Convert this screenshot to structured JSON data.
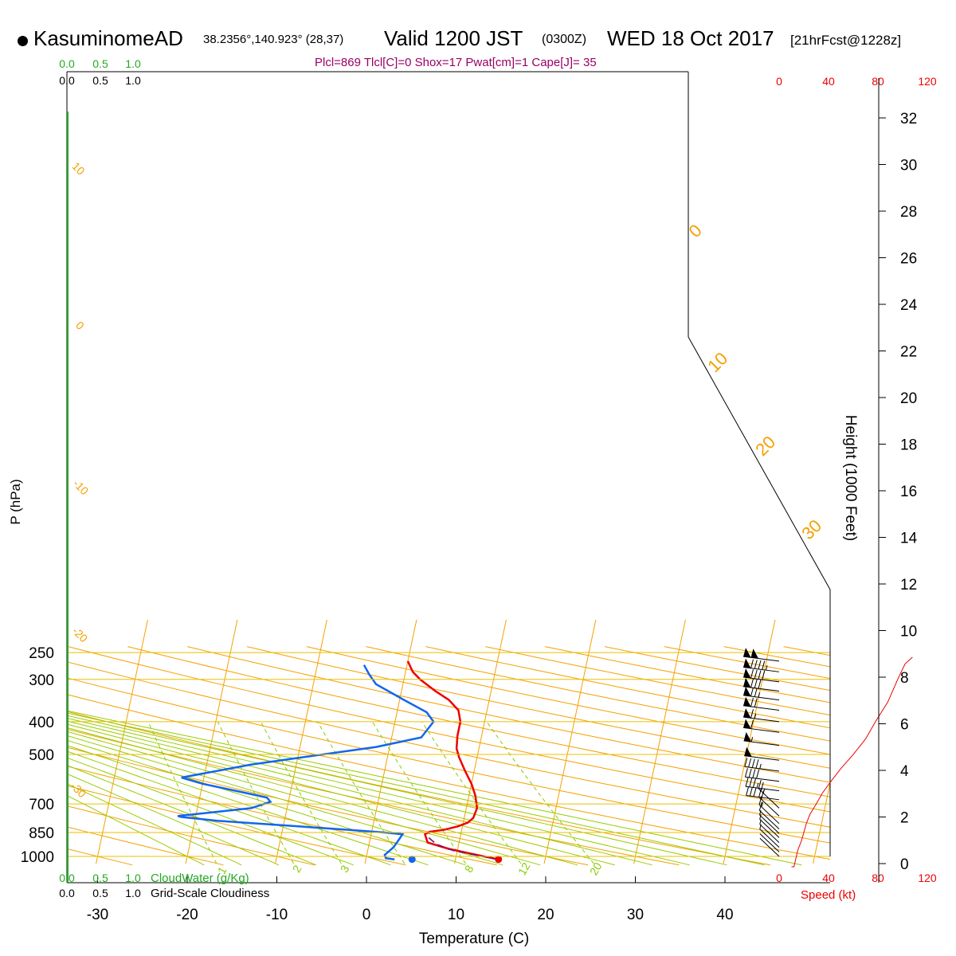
{
  "header": {
    "station": "KasuminomeAD",
    "coords": "38.2356°,140.923° (28,37)",
    "valid": "Valid 1200 JST",
    "zulu": "(0300Z)",
    "date": "WED 18 Oct 2017",
    "forecast": "[21hrFcst@1228z]"
  },
  "indices": "Plcl=869 Tlcl[C]=0 Shox=17 Pwat[cm]=1 Cape[J]= 35",
  "chart_data": {
    "type": "line",
    "title": "",
    "xlabel": "Temperature (C)",
    "ylabel": "P (hPa)",
    "y2label": "Height (1000 Feet)",
    "x_ticks": [
      -30,
      -20,
      -10,
      0,
      10,
      20,
      30,
      40
    ],
    "p_levels": [
      250,
      300,
      400,
      500,
      700,
      850,
      1000
    ],
    "height_ticks": [
      0,
      2,
      4,
      6,
      8,
      10,
      12,
      14,
      16,
      18,
      20,
      22,
      24,
      26,
      28,
      30,
      32
    ],
    "speed_ticks": [
      0,
      40,
      80,
      120
    ],
    "speed_label": "Speed (kt)",
    "cloud_ticks": [
      "0.0",
      "0.5",
      "1.0"
    ],
    "cloud_water_label": "CloudWater (g/Kg)",
    "cloudiness_label": "Grid-Scale Cloudiness",
    "dry_adiabat_labels": [
      "10",
      "0",
      "-10",
      "-20",
      "-30",
      "0",
      "10",
      "20",
      "30"
    ],
    "mixing_ratio_labels": [
      "1",
      "2",
      "3",
      "8",
      "12",
      "20"
    ],
    "series": [
      {
        "name": "temperature",
        "color": "#ee0000",
        "points": [
          [
            14.8,
            1020
          ],
          [
            13.5,
            1005
          ],
          [
            11.5,
            980
          ],
          [
            9,
            950
          ],
          [
            6.5,
            910
          ],
          [
            6,
            860
          ],
          [
            6.5,
            845
          ],
          [
            8,
            835
          ],
          [
            9.5,
            815
          ],
          [
            10.5,
            795
          ],
          [
            11,
            770
          ],
          [
            11.2,
            720
          ],
          [
            10.7,
            660
          ],
          [
            10,
            610
          ],
          [
            9,
            560
          ],
          [
            8,
            510
          ],
          [
            7.5,
            480
          ],
          [
            7.3,
            440
          ],
          [
            7.3,
            400
          ],
          [
            6.8,
            370
          ],
          [
            5.5,
            345
          ],
          [
            3.8,
            325
          ],
          [
            1.8,
            300
          ],
          [
            0.8,
            285
          ],
          [
            0,
            265
          ]
        ]
      },
      {
        "name": "dewpoint",
        "color": "#1166ee",
        "points": [
          [
            3.2,
            1020
          ],
          [
            2.2,
            1012
          ],
          [
            2,
            990
          ],
          [
            2.8,
            940
          ],
          [
            3.2,
            895
          ],
          [
            3.5,
            860
          ],
          [
            1.5,
            850
          ],
          [
            -2.5,
            835
          ],
          [
            -17.5,
            785
          ],
          [
            -21.5,
            765
          ],
          [
            -22,
            760
          ],
          [
            -14,
            720
          ],
          [
            -12,
            690
          ],
          [
            -12.5,
            670
          ],
          [
            -15.5,
            645
          ],
          [
            -20,
            610
          ],
          [
            -22.5,
            585
          ],
          [
            -15,
            535
          ],
          [
            -1.5,
            475
          ],
          [
            3.3,
            445
          ],
          [
            4.3,
            400
          ],
          [
            3.3,
            375
          ],
          [
            0.5,
            345
          ],
          [
            -3,
            310
          ],
          [
            -4,
            290
          ],
          [
            -4.8,
            272
          ]
        ]
      },
      {
        "name": "parcel",
        "color": "#771177",
        "points": [
          [
            14.8,
            1020
          ],
          [
            12.5,
            995
          ],
          [
            9.5,
            960
          ],
          [
            7.5,
            920
          ],
          [
            6.5,
            880
          ],
          [
            6.5,
            855
          ]
        ]
      }
    ],
    "winds": [
      {
        "p": 1000,
        "speed": 3
      },
      {
        "p": 970,
        "speed": 4
      },
      {
        "p": 940,
        "speed": 5
      },
      {
        "p": 910,
        "speed": 5
      },
      {
        "p": 880,
        "speed": 6
      },
      {
        "p": 855,
        "speed": 8
      },
      {
        "p": 830,
        "speed": 10
      },
      {
        "p": 800,
        "speed": 15
      },
      {
        "p": 760,
        "speed": 20
      },
      {
        "p": 720,
        "speed": 25
      },
      {
        "p": 680,
        "speed": 30
      },
      {
        "p": 640,
        "speed": 35
      },
      {
        "p": 600,
        "speed": 40
      },
      {
        "p": 560,
        "speed": 45
      },
      {
        "p": 520,
        "speed": 50
      },
      {
        "p": 470,
        "speed": 55
      },
      {
        "p": 430,
        "speed": 60
      },
      {
        "p": 400,
        "speed": 65
      },
      {
        "p": 370,
        "speed": 70
      },
      {
        "p": 345,
        "speed": 75
      },
      {
        "p": 325,
        "speed": 80
      },
      {
        "p": 305,
        "speed": 90
      },
      {
        "p": 285,
        "speed": 95
      },
      {
        "p": 265,
        "speed": 100
      }
    ],
    "speed_profile": [
      [
        10,
        1020
      ],
      [
        12,
        1005
      ],
      [
        15,
        960
      ],
      [
        18,
        900
      ],
      [
        20,
        850
      ],
      [
        22,
        800
      ],
      [
        25,
        750
      ],
      [
        30,
        700
      ],
      [
        35,
        650
      ],
      [
        42,
        600
      ],
      [
        50,
        550
      ],
      [
        60,
        500
      ],
      [
        70,
        450
      ],
      [
        78,
        400
      ],
      [
        88,
        350
      ],
      [
        96,
        300
      ],
      [
        102,
        270
      ],
      [
        108,
        258
      ]
    ],
    "grid": true,
    "colors": {
      "isobar": "#e8c000",
      "isotherm": "#f5a000",
      "dry_adiabat": "#f5a000",
      "moist_adiabat": "#99cc00",
      "mixing_ratio": "#88cc00",
      "cloud": "#22aa22",
      "speed": "#ee0000"
    }
  }
}
